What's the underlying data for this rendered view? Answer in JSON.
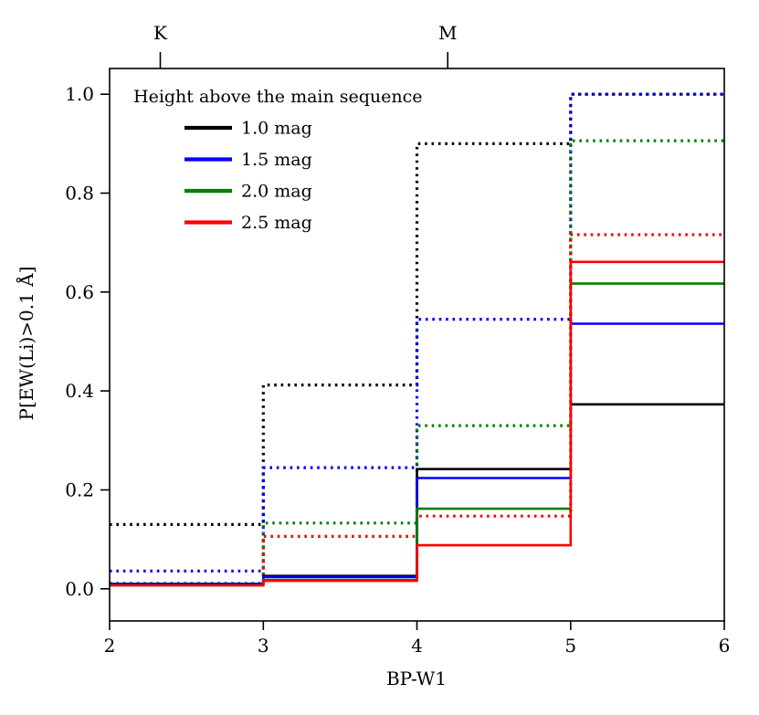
{
  "chart_data": {
    "type": "step",
    "title": "",
    "xlabel": "BP-W1",
    "ylabel": "P[EW(Li)>0.1 Å]",
    "xlim": [
      2,
      6
    ],
    "ylim": [
      -0.065,
      1.052
    ],
    "x_ticks": [
      "2",
      "3",
      "4",
      "5",
      "6"
    ],
    "y_ticks": [
      "0.0",
      "0.2",
      "0.4",
      "0.6",
      "0.8",
      "1.0"
    ],
    "grid": "off",
    "bin_edges": [
      2,
      3,
      4,
      5,
      6
    ],
    "top_axis_markers": [
      {
        "label": "K",
        "x": 2.33
      },
      {
        "label": "M",
        "x": 4.2
      }
    ],
    "legend": {
      "title": "Height above the main sequence",
      "position": "upper-left-inside",
      "entries": [
        {
          "label": "1.0 mag",
          "color": "#000000"
        },
        {
          "label": "1.5 mag",
          "color": "#0000ff"
        },
        {
          "label": "2.0 mag",
          "color": "#008000"
        },
        {
          "label": "2.5 mag",
          "color": "#ff0000"
        }
      ]
    },
    "series": [
      {
        "name": "1.0 mag dotted",
        "color": "#000000",
        "style": "dotted",
        "values": [
          0.13,
          0.412,
          0.9,
          1.0
        ]
      },
      {
        "name": "1.5 mag dotted",
        "color": "#0000ff",
        "style": "dotted",
        "values": [
          0.036,
          0.245,
          0.545,
          1.0
        ]
      },
      {
        "name": "2.0 mag dotted",
        "color": "#008000",
        "style": "dotted",
        "values": [
          0.011,
          0.133,
          0.33,
          0.906
        ]
      },
      {
        "name": "2.5 mag dotted",
        "color": "#ff0000",
        "style": "dotted",
        "values": [
          0.008,
          0.106,
          0.147,
          0.716
        ]
      },
      {
        "name": "1.0 mag solid",
        "color": "#000000",
        "style": "solid",
        "values": [
          0.01,
          0.026,
          0.242,
          0.373
        ]
      },
      {
        "name": "1.5 mag solid",
        "color": "#0000ff",
        "style": "solid",
        "values": [
          0.01,
          0.024,
          0.224,
          0.536
        ]
      },
      {
        "name": "2.0 mag solid",
        "color": "#008000",
        "style": "solid",
        "values": [
          0.007,
          0.018,
          0.162,
          0.617
        ]
      },
      {
        "name": "2.5 mag solid",
        "color": "#ff0000",
        "style": "solid",
        "values": [
          0.007,
          0.016,
          0.088,
          0.661
        ]
      }
    ]
  }
}
